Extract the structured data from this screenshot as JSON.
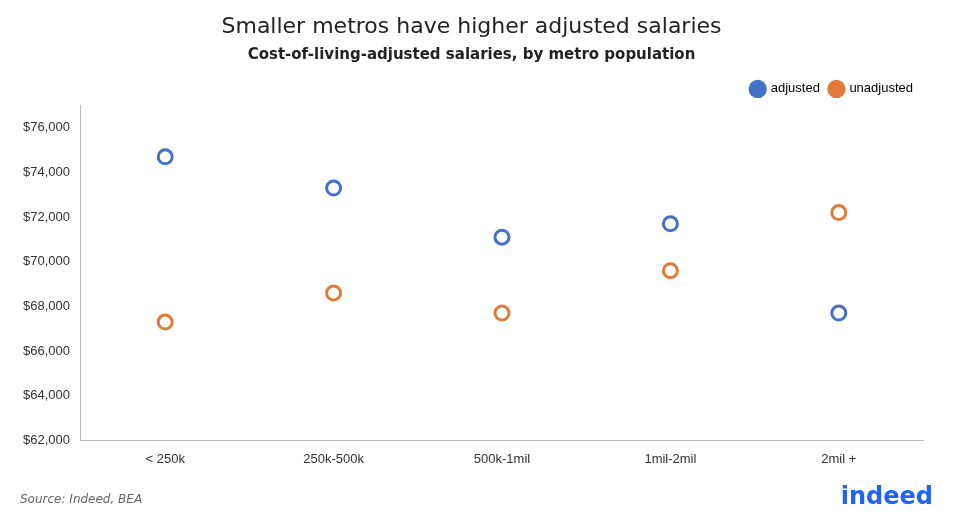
{
  "chart_data": {
    "type": "scatter",
    "title": "Smaller metros have higher adjusted salaries",
    "subtitle": "Cost-of-living-adjusted salaries, by metro population",
    "categories": [
      "< 250k",
      "250k-500k",
      "500k-1mil",
      "1mil-2mil",
      "2mil +"
    ],
    "series": [
      {
        "name": "adjusted",
        "color": "#4472C4",
        "values": [
          74700,
          73300,
          71100,
          71700,
          67700
        ]
      },
      {
        "name": "unadjusted",
        "color": "#E07B39",
        "values": [
          67300,
          68600,
          67700,
          69600,
          72200
        ]
      }
    ],
    "ylim": [
      62000,
      77000
    ],
    "yticks": [
      {
        "value": 62000,
        "label": "$62,000"
      },
      {
        "value": 64000,
        "label": "$64,000"
      },
      {
        "value": 66000,
        "label": "$66,000"
      },
      {
        "value": 68000,
        "label": "$68,000"
      },
      {
        "value": 70000,
        "label": "$70,000"
      },
      {
        "value": 72000,
        "label": "$72,000"
      },
      {
        "value": 74000,
        "label": "$74,000"
      },
      {
        "value": 76000,
        "label": "$76,000"
      }
    ],
    "grid": false,
    "legend": "upper right",
    "marker": "o",
    "annotations": [
      {
        "text": "Source: Indeed, BEA"
      },
      {
        "text": "indeed",
        "color": "#2164f3"
      }
    ]
  }
}
